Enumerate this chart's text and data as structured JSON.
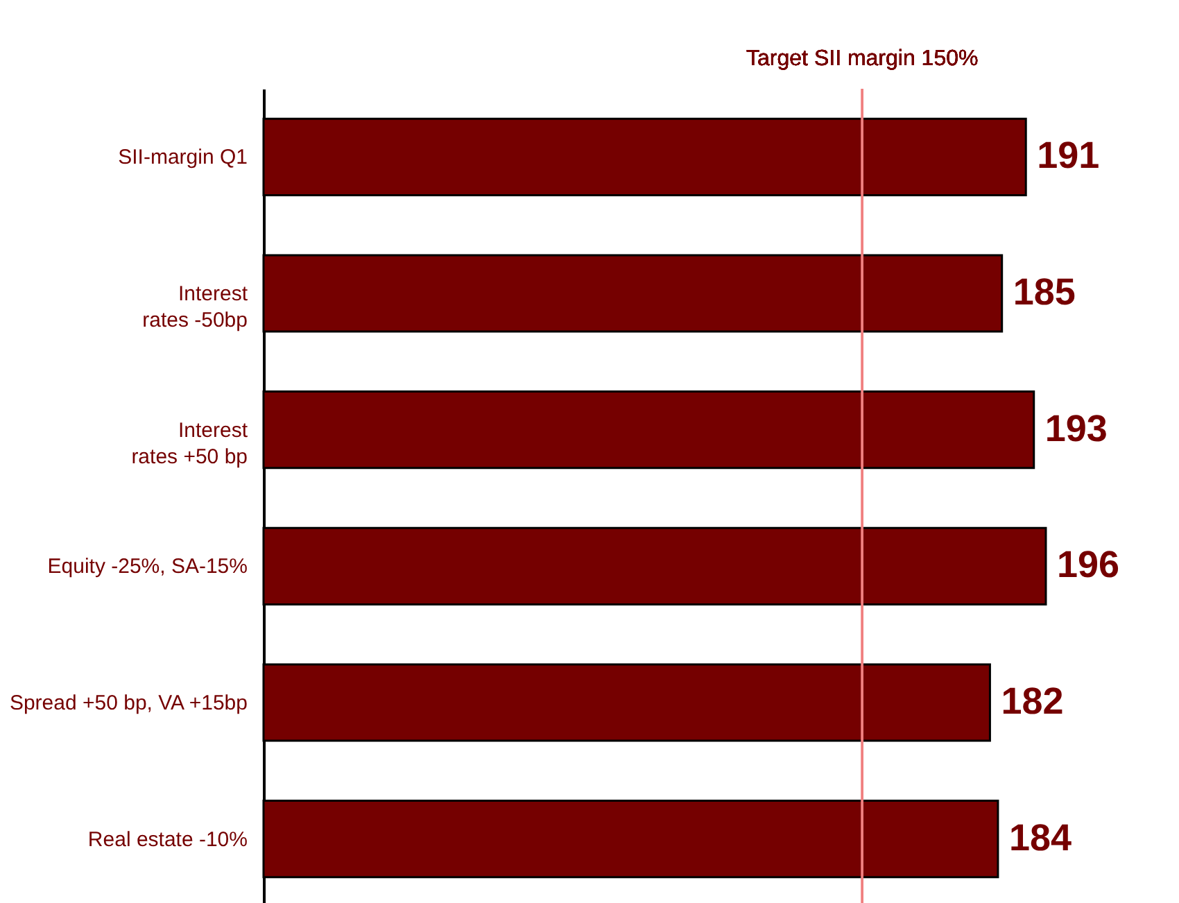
{
  "chart_data": {
    "type": "bar",
    "orientation": "horizontal",
    "categories": [
      "SII-margin Q1",
      "Interest\nrates -50bp",
      "Interest\nrates +50 bp",
      "Equity -25%, SA-15%",
      "Spread +50 bp, VA +15bp",
      "Real estate -10%"
    ],
    "values": [
      191,
      185,
      193,
      196,
      182,
      184
    ],
    "color": "#750000",
    "data_labels": true,
    "tick_labels": "y",
    "ref_lines": [
      {
        "axis": "x",
        "value": 150,
        "label": "Target SII margin 150%",
        "color": "#f08080"
      }
    ]
  }
}
